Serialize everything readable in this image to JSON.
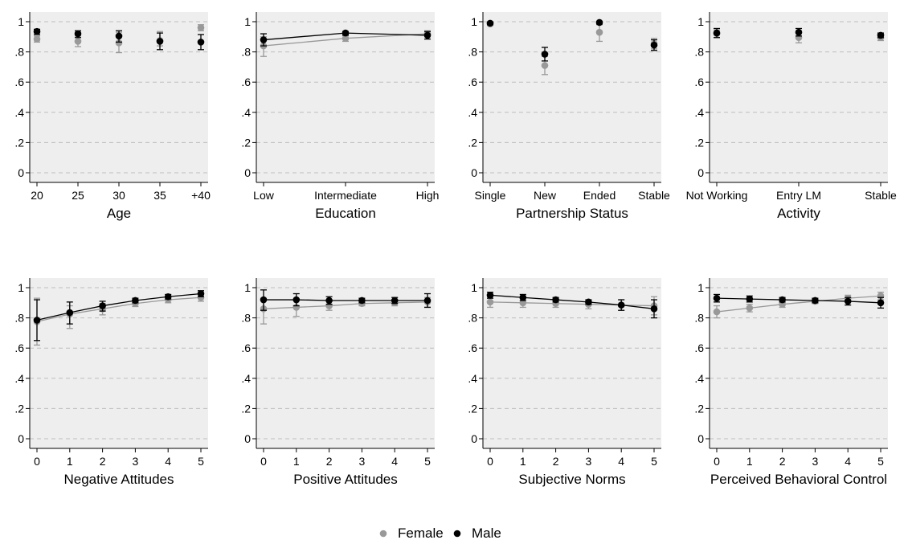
{
  "colors": {
    "female": "#999999",
    "male": "#000000",
    "plot_background": "#eeeeee",
    "gridline": "#bdbdbd"
  },
  "legend": {
    "position": "bottom-center",
    "entries": [
      {
        "key": "female",
        "label": "Female"
      },
      {
        "key": "male",
        "label": "Male"
      }
    ]
  },
  "chart_data": [
    {
      "type": "scatter",
      "xlabel": "Age",
      "x_tick_labels": [
        "20",
        "25",
        "30",
        "35",
        "+40"
      ],
      "connect_lines": false,
      "ylim": [
        0,
        1
      ],
      "y_ticks": [
        0,
        0.2,
        0.4,
        0.6,
        0.8,
        1
      ],
      "y_tick_labels": [
        "0",
        ".2",
        ".4",
        ".6",
        ".8",
        "1"
      ],
      "grid": true,
      "series": [
        {
          "key": "female",
          "name": "Female",
          "values": [
            0.885,
            0.87,
            0.86,
            0.875,
            0.96
          ],
          "ci": [
            [
              0.865,
              0.905
            ],
            [
              0.835,
              0.905
            ],
            [
              0.795,
              0.93
            ],
            [
              0.84,
              0.935
            ],
            [
              0.94,
              0.98
            ]
          ]
        },
        {
          "key": "male",
          "name": "Male",
          "values": [
            0.935,
            0.92,
            0.905,
            0.87,
            0.865
          ],
          "ci": [
            [
              0.915,
              0.95
            ],
            [
              0.895,
              0.94
            ],
            [
              0.865,
              0.94
            ],
            [
              0.815,
              0.925
            ],
            [
              0.815,
              0.915
            ]
          ]
        }
      ]
    },
    {
      "type": "line",
      "xlabel": "Education",
      "x_tick_labels": [
        "Low",
        "Intermediate",
        "High"
      ],
      "connect_lines": true,
      "ylim": [
        0,
        1
      ],
      "y_ticks": [
        0,
        0.2,
        0.4,
        0.6,
        0.8,
        1
      ],
      "y_tick_labels": [
        "0",
        ".2",
        ".4",
        ".6",
        ".8",
        "1"
      ],
      "grid": true,
      "series": [
        {
          "key": "female",
          "name": "Female",
          "values": [
            0.84,
            0.89,
            0.92
          ],
          "ci": [
            [
              0.77,
              0.9
            ],
            [
              0.87,
              0.91
            ],
            [
              0.9,
              0.94
            ]
          ]
        },
        {
          "key": "male",
          "name": "Male",
          "values": [
            0.88,
            0.925,
            0.91
          ],
          "ci": [
            [
              0.84,
              0.92
            ],
            [
              0.91,
              0.935
            ],
            [
              0.885,
              0.935
            ]
          ]
        }
      ]
    },
    {
      "type": "scatter",
      "xlabel": "Partnership Status",
      "x_tick_labels": [
        "Single",
        "New",
        "Ended",
        "Stable"
      ],
      "connect_lines": false,
      "ylim": [
        0,
        1
      ],
      "y_ticks": [
        0,
        0.2,
        0.4,
        0.6,
        0.8,
        1
      ],
      "y_tick_labels": [
        "0",
        ".2",
        ".4",
        ".6",
        ".8",
        "1"
      ],
      "grid": true,
      "series": [
        {
          "key": "female",
          "name": "Female",
          "values": [
            0.985,
            0.71,
            0.93,
            0.855
          ],
          "ci": [
            [
              0.975,
              0.995
            ],
            [
              0.65,
              0.77
            ],
            [
              0.87,
              0.98
            ],
            [
              0.82,
              0.89
            ]
          ]
        },
        {
          "key": "male",
          "name": "Male",
          "values": [
            0.99,
            0.785,
            0.995,
            0.845
          ],
          "ci": [
            [
              0.98,
              0.998
            ],
            [
              0.74,
              0.83
            ],
            [
              0.985,
              1.0
            ],
            [
              0.81,
              0.88
            ]
          ]
        }
      ]
    },
    {
      "type": "scatter",
      "xlabel": "Activity",
      "x_tick_labels": [
        "Not Working",
        "Entry LM",
        "Stable"
      ],
      "connect_lines": false,
      "ylim": [
        0,
        1
      ],
      "y_ticks": [
        0,
        0.2,
        0.4,
        0.6,
        0.8,
        1
      ],
      "y_tick_labels": [
        "0",
        ".2",
        ".4",
        ".6",
        ".8",
        "1"
      ],
      "grid": true,
      "series": [
        {
          "key": "female",
          "name": "Female",
          "values": [
            0.92,
            0.895,
            0.895
          ],
          "ci": [
            [
              0.895,
              0.945
            ],
            [
              0.86,
              0.93
            ],
            [
              0.875,
              0.915
            ]
          ]
        },
        {
          "key": "male",
          "name": "Male",
          "values": [
            0.925,
            0.93,
            0.91
          ],
          "ci": [
            [
              0.895,
              0.955
            ],
            [
              0.905,
              0.955
            ],
            [
              0.895,
              0.925
            ]
          ]
        }
      ]
    },
    {
      "type": "line",
      "xlabel": "Negative Attitudes",
      "x_tick_labels": [
        "0",
        "1",
        "2",
        "3",
        "4",
        "5"
      ],
      "connect_lines": true,
      "ylim": [
        0,
        1
      ],
      "y_ticks": [
        0,
        0.2,
        0.4,
        0.6,
        0.8,
        1
      ],
      "y_tick_labels": [
        "0",
        ".2",
        ".4",
        ".6",
        ".8",
        "1"
      ],
      "grid": true,
      "series": [
        {
          "key": "female",
          "name": "Female",
          "values": [
            0.775,
            0.825,
            0.86,
            0.895,
            0.92,
            0.935
          ],
          "ci": [
            [
              0.62,
              0.93
            ],
            [
              0.73,
              0.88
            ],
            [
              0.82,
              0.895
            ],
            [
              0.875,
              0.915
            ],
            [
              0.9,
              0.94
            ],
            [
              0.91,
              0.96
            ]
          ]
        },
        {
          "key": "male",
          "name": "Male",
          "values": [
            0.785,
            0.835,
            0.88,
            0.915,
            0.94,
            0.96
          ],
          "ci": [
            [
              0.65,
              0.92
            ],
            [
              0.76,
              0.905
            ],
            [
              0.845,
              0.91
            ],
            [
              0.9,
              0.93
            ],
            [
              0.925,
              0.955
            ],
            [
              0.94,
              0.98
            ]
          ]
        }
      ]
    },
    {
      "type": "line",
      "xlabel": "Positive Attitudes",
      "x_tick_labels": [
        "0",
        "1",
        "2",
        "3",
        "4",
        "5"
      ],
      "connect_lines": true,
      "ylim": [
        0,
        1
      ],
      "y_ticks": [
        0,
        0.2,
        0.4,
        0.6,
        0.8,
        1
      ],
      "y_tick_labels": [
        "0",
        ".2",
        ".4",
        ".6",
        ".8",
        "1"
      ],
      "grid": true,
      "series": [
        {
          "key": "female",
          "name": "Female",
          "values": [
            0.86,
            0.87,
            0.88,
            0.895,
            0.9,
            0.905
          ],
          "ci": [
            [
              0.76,
              0.93
            ],
            [
              0.81,
              0.92
            ],
            [
              0.85,
              0.91
            ],
            [
              0.88,
              0.91
            ],
            [
              0.88,
              0.92
            ],
            [
              0.87,
              0.935
            ]
          ]
        },
        {
          "key": "male",
          "name": "Male",
          "values": [
            0.92,
            0.92,
            0.915,
            0.915,
            0.915,
            0.915
          ],
          "ci": [
            [
              0.85,
              0.985
            ],
            [
              0.88,
              0.96
            ],
            [
              0.89,
              0.94
            ],
            [
              0.9,
              0.93
            ],
            [
              0.895,
              0.935
            ],
            [
              0.87,
              0.96
            ]
          ]
        }
      ]
    },
    {
      "type": "line",
      "xlabel": "Subjective Norms",
      "x_tick_labels": [
        "0",
        "1",
        "2",
        "3",
        "4",
        "5"
      ],
      "connect_lines": true,
      "ylim": [
        0,
        1
      ],
      "y_ticks": [
        0,
        0.2,
        0.4,
        0.6,
        0.8,
        1
      ],
      "y_tick_labels": [
        "0",
        ".2",
        ".4",
        ".6",
        ".8",
        "1"
      ],
      "grid": true,
      "series": [
        {
          "key": "female",
          "name": "Female",
          "values": [
            0.905,
            0.9,
            0.895,
            0.89,
            0.885,
            0.88
          ],
          "ci": [
            [
              0.87,
              0.94
            ],
            [
              0.87,
              0.93
            ],
            [
              0.87,
              0.92
            ],
            [
              0.86,
              0.915
            ],
            [
              0.85,
              0.92
            ],
            [
              0.82,
              0.94
            ]
          ]
        },
        {
          "key": "male",
          "name": "Male",
          "values": [
            0.95,
            0.935,
            0.92,
            0.905,
            0.885,
            0.86
          ],
          "ci": [
            [
              0.93,
              0.97
            ],
            [
              0.915,
              0.955
            ],
            [
              0.905,
              0.935
            ],
            [
              0.89,
              0.92
            ],
            [
              0.85,
              0.92
            ],
            [
              0.8,
              0.92
            ]
          ]
        }
      ]
    },
    {
      "type": "line",
      "xlabel": "Perceived Behavioral Control",
      "x_tick_labels": [
        "0",
        "1",
        "2",
        "3",
        "4",
        "5"
      ],
      "connect_lines": true,
      "ylim": [
        0,
        1
      ],
      "y_ticks": [
        0,
        0.2,
        0.4,
        0.6,
        0.8,
        1
      ],
      "y_tick_labels": [
        "0",
        ".2",
        ".4",
        ".6",
        ".8",
        "1"
      ],
      "grid": true,
      "series": [
        {
          "key": "female",
          "name": "Female",
          "values": [
            0.84,
            0.865,
            0.89,
            0.91,
            0.93,
            0.945
          ],
          "ci": [
            [
              0.8,
              0.88
            ],
            [
              0.84,
              0.89
            ],
            [
              0.87,
              0.91
            ],
            [
              0.895,
              0.925
            ],
            [
              0.91,
              0.95
            ],
            [
              0.92,
              0.97
            ]
          ]
        },
        {
          "key": "male",
          "name": "Male",
          "values": [
            0.93,
            0.925,
            0.92,
            0.915,
            0.91,
            0.9
          ],
          "ci": [
            [
              0.905,
              0.955
            ],
            [
              0.905,
              0.945
            ],
            [
              0.905,
              0.935
            ],
            [
              0.9,
              0.93
            ],
            [
              0.885,
              0.935
            ],
            [
              0.865,
              0.935
            ]
          ]
        }
      ]
    }
  ]
}
